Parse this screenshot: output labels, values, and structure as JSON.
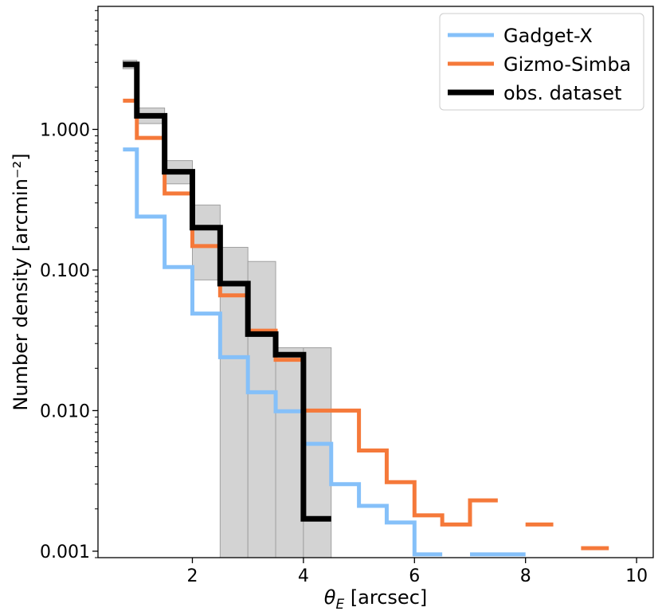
{
  "chart_data": {
    "type": "line",
    "step": "histogram",
    "title": "",
    "xlabel": "θ_E [arcsec]",
    "xlabel_parts": {
      "symbol": "θ",
      "subscript": "E",
      "unit": " [arcsec]"
    },
    "ylabel": "Number density [arcmin⁻²]",
    "yscale": "log",
    "xlim": [
      0.3,
      10.3
    ],
    "ylim": [
      0.0009,
      7.5
    ],
    "grid": false,
    "legend_position": "top-right",
    "x_ticks": [
      2,
      4,
      6,
      8,
      10
    ],
    "x_tick_labels": [
      "2",
      "4",
      "6",
      "8",
      "10"
    ],
    "y_ticks": [
      0.001,
      0.01,
      0.1,
      1
    ],
    "y_tick_labels": [
      "0.001",
      "0.010",
      "0.100",
      "1.000"
    ],
    "bin_edges": [
      0.75,
      1.0,
      1.5,
      2.0,
      2.5,
      3.0,
      3.5,
      4.0,
      4.5,
      5.0,
      5.5,
      6.0,
      6.5,
      7.0,
      7.5,
      8.0,
      8.5,
      9.0,
      9.5
    ],
    "series": [
      {
        "name": "Gadget-X",
        "color": "#85c0f9",
        "values": [
          0.72,
          0.24,
          0.105,
          0.049,
          0.024,
          0.0135,
          0.0099,
          0.0058,
          0.003,
          0.0021,
          0.0016,
          0.00095,
          null,
          0.00095,
          0.00095,
          null,
          null,
          null
        ]
      },
      {
        "name": "Gizmo-Simba",
        "color": "#f5793a",
        "values": [
          1.6,
          0.87,
          0.35,
          0.148,
          0.066,
          0.037,
          0.023,
          0.01,
          0.01,
          0.0052,
          0.0031,
          0.0018,
          0.00155,
          0.0023,
          null,
          0.00155,
          null,
          0.00105
        ]
      },
      {
        "name": "obs. dataset",
        "color": "#000000",
        "values": [
          2.9,
          1.25,
          0.5,
          0.2,
          0.08,
          0.035,
          0.025,
          0.0017,
          null,
          null,
          null,
          null,
          null,
          null,
          null,
          null,
          null,
          null
        ]
      }
    ],
    "uncertainty_band": {
      "color": "#d3d3d3",
      "edge_color": "#a0a0a0",
      "lower": [
        2.7,
        1.1,
        0.41,
        0.085,
        null,
        null,
        null,
        null
      ],
      "upper": [
        3.1,
        1.42,
        0.6,
        0.29,
        0.145,
        0.115,
        0.028,
        0.028
      ]
    }
  }
}
